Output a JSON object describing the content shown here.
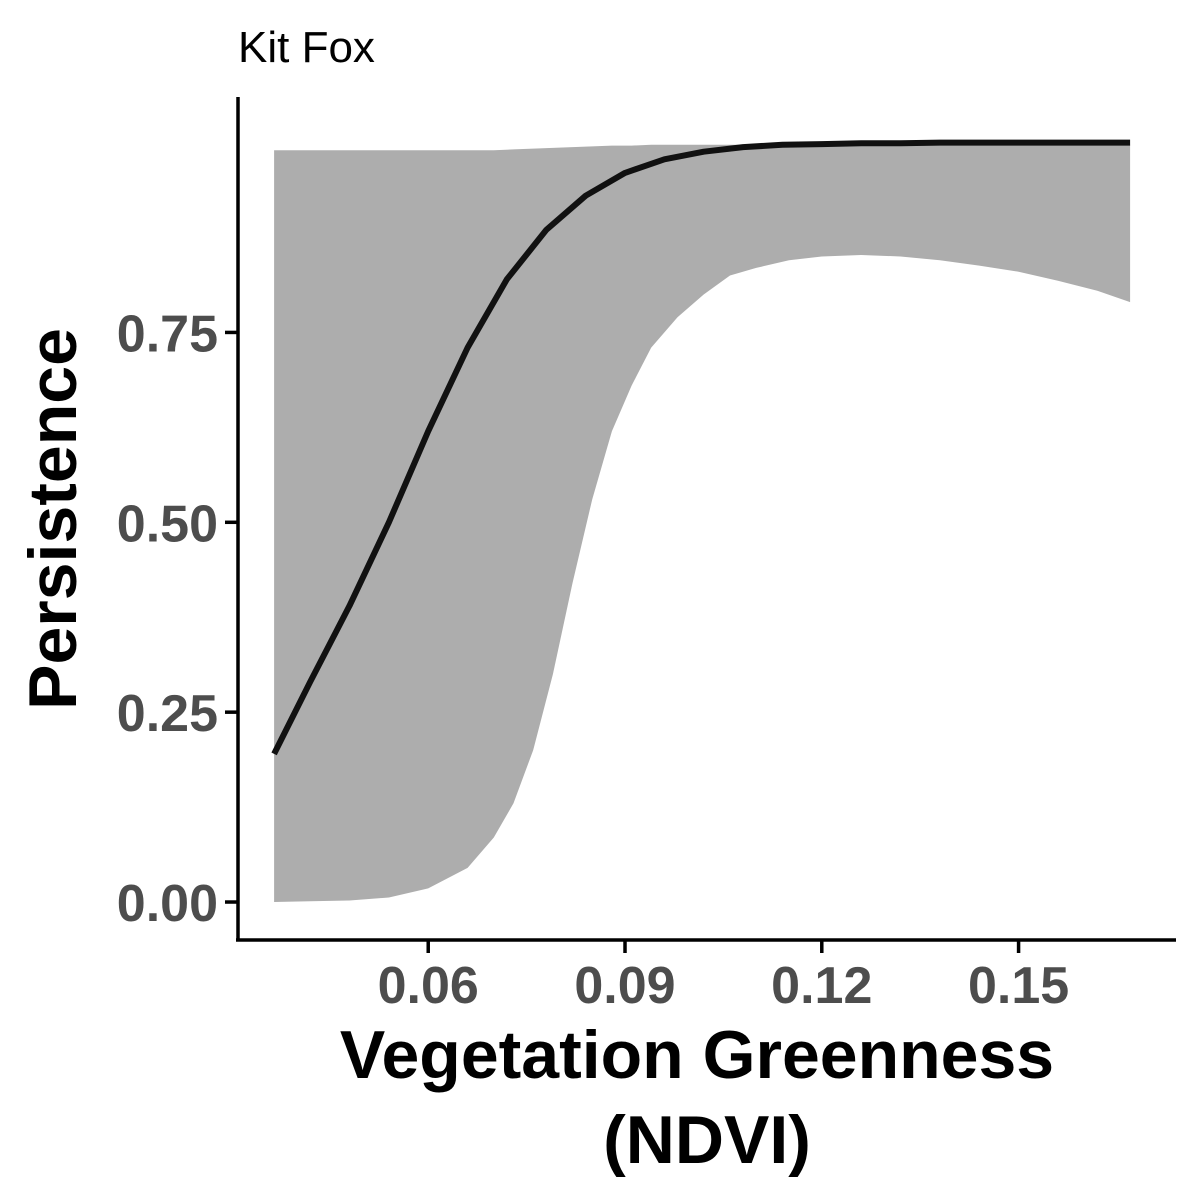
{
  "chart_data": {
    "type": "line",
    "title": "Kit Fox",
    "xlabel": "Vegetation Greenness",
    "xlabel_line2": "(NDVI)",
    "ylabel": "Persistence",
    "xlim": [
      0.031,
      0.174
    ],
    "ylim": [
      -0.05,
      1.06
    ],
    "x_ticks": [
      0.06,
      0.09,
      0.12,
      0.15
    ],
    "x_tick_labels": [
      "0.06",
      "0.09",
      "0.12",
      "0.15"
    ],
    "y_ticks": [
      0.0,
      0.25,
      0.5,
      0.75
    ],
    "y_tick_labels": [
      "0.00",
      "0.25",
      "0.50",
      "0.75"
    ],
    "grid": false,
    "legend": "none",
    "series": [
      {
        "x": [
          0.0365,
          0.042,
          0.048,
          0.054,
          0.06,
          0.066,
          0.072,
          0.078,
          0.084,
          0.09,
          0.096,
          0.102,
          0.108,
          0.114,
          0.12,
          0.126,
          0.132,
          0.138,
          0.144,
          0.15,
          0.156,
          0.162,
          0.167
        ],
        "values": [
          0.195,
          0.29,
          0.39,
          0.5,
          0.62,
          0.73,
          0.82,
          0.885,
          0.93,
          0.96,
          0.978,
          0.988,
          0.994,
          0.997,
          0.998,
          0.999,
          0.999,
          1.0,
          1.0,
          1.0,
          1.0,
          1.0,
          1.0
        ]
      }
    ],
    "confidence_band": {
      "x": [
        0.0365,
        0.042,
        0.048,
        0.054,
        0.06,
        0.066,
        0.07,
        0.073,
        0.076,
        0.079,
        0.082,
        0.085,
        0.088,
        0.091,
        0.094,
        0.098,
        0.102,
        0.106,
        0.11,
        0.115,
        0.12,
        0.126,
        0.132,
        0.138,
        0.144,
        0.15,
        0.156,
        0.162,
        0.167
      ],
      "lower": [
        0.0,
        0.001,
        0.002,
        0.006,
        0.018,
        0.045,
        0.085,
        0.13,
        0.2,
        0.3,
        0.42,
        0.53,
        0.62,
        0.68,
        0.73,
        0.77,
        0.8,
        0.825,
        0.835,
        0.845,
        0.85,
        0.852,
        0.85,
        0.845,
        0.838,
        0.83,
        0.818,
        0.805,
        0.79
      ],
      "upper": [
        0.99,
        0.99,
        0.99,
        0.99,
        0.99,
        0.99,
        0.99,
        0.991,
        0.992,
        0.993,
        0.994,
        0.995,
        0.996,
        0.996,
        0.997,
        0.997,
        0.997,
        0.997,
        0.997,
        0.997,
        0.997,
        0.997,
        0.997,
        0.997,
        0.997,
        0.997,
        0.997,
        0.997,
        0.997
      ]
    },
    "colors": {
      "line": "#111111",
      "band": "#adadad",
      "axis": "#000000",
      "tick_label": "#4d4d4d"
    }
  }
}
